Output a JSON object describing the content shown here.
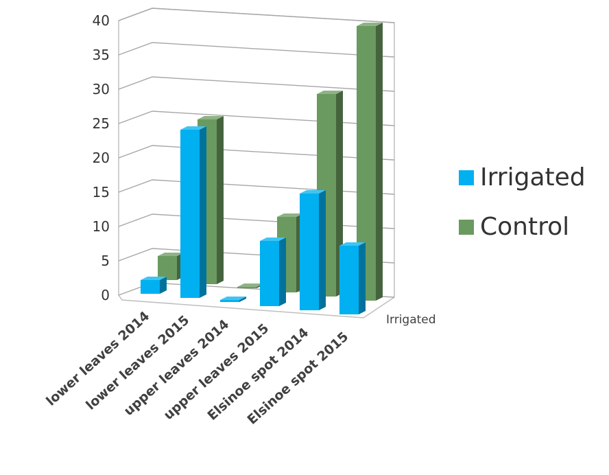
{
  "chart_data": {
    "type": "bar",
    "style": "3d-clustered-column",
    "categories": [
      "lower leaves 2014",
      "lower leaves 2015",
      "upper leaves 2014",
      "upper leaves 2015",
      "Elsinoe spot 2014",
      "Elsinoe spot 2015"
    ],
    "series": [
      {
        "name": "Irrigated",
        "color": "#00b0f0",
        "values": [
          2,
          24.5,
          0.3,
          9.5,
          17,
          10
        ]
      },
      {
        "name": "Control",
        "color": "#6a9a5f",
        "values": [
          3.5,
          24,
          0.2,
          11,
          29.5,
          40
        ]
      }
    ],
    "y_ticks": [
      "0",
      "5",
      "10",
      "15",
      "20",
      "25",
      "30",
      "35",
      "40"
    ],
    "ylim": [
      0,
      40
    ],
    "depth_axis_label": "Irrigated",
    "grid": true,
    "legend": "right"
  }
}
